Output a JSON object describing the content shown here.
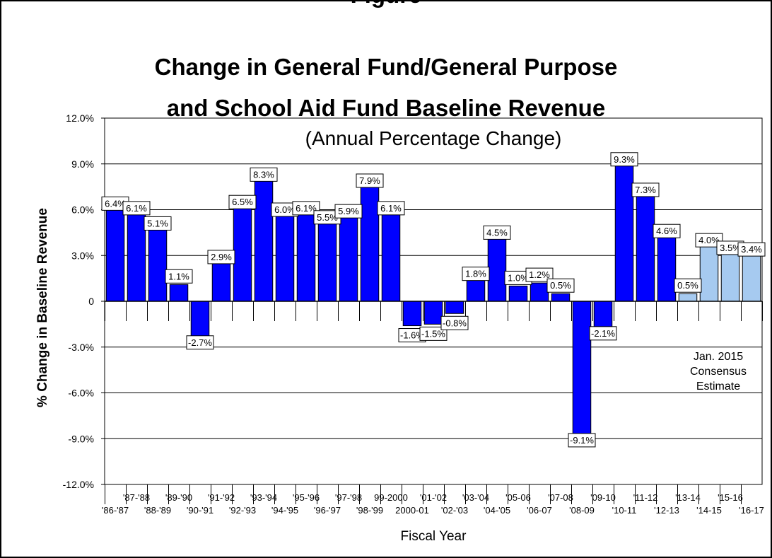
{
  "chart_data": {
    "type": "bar",
    "title_top": "Figure",
    "title": "Change in General Fund/General Purpose",
    "title_line2": "and School Aid Fund Baseline Revenue",
    "subtitle": "(Annual Percentage Change)",
    "xlabel": "Fiscal Year",
    "ylabel": "% Change in Baseline Revenue",
    "ylim": [
      -12.0,
      12.0
    ],
    "yticks": [
      "12.0%",
      "9.0%",
      "6.0%",
      "3.0%",
      "0",
      "-3.0%",
      "-6.0%",
      "-9.0%",
      "-12.0%"
    ],
    "grid": true,
    "categories": [
      "'86-'87",
      "'87-'88",
      "'88-'89",
      "'89-'90",
      "'90-'91",
      "'91-'92",
      "'92-'93",
      "'93-'94",
      "'94-'95",
      "'95-'96",
      "'96-'97",
      "'97-'98",
      "'98-'99",
      "99-2000",
      "2000-01",
      "'01-'02",
      "'02-'03",
      "'03-'04",
      "'04-'05",
      "'05-06",
      "'06-07",
      "'07-08",
      "'08-09",
      "'09-10",
      "'10-11",
      "'11-12",
      "'12-13",
      "'13-14",
      "'14-15",
      "'15-16",
      "'16-17"
    ],
    "values": [
      6.4,
      6.1,
      5.1,
      1.1,
      -2.7,
      2.9,
      6.5,
      8.3,
      6.0,
      6.1,
      5.5,
      5.9,
      7.9,
      6.1,
      -1.6,
      -1.5,
      -0.8,
      1.8,
      4.5,
      1.0,
      1.2,
      0.5,
      -9.1,
      -2.1,
      9.3,
      7.3,
      4.6,
      0.5,
      4.0,
      3.5,
      3.4
    ],
    "data_labels": [
      "6.4%",
      "6.1%",
      "5.1%",
      "1.1%",
      "-2.7%",
      "2.9%",
      "6.5%",
      "8.3%",
      "6.0%",
      "6.1%",
      "5.5%",
      "5.9%",
      "7.9%",
      "6.1%",
      "-1.6%",
      "-1.5%",
      "-0.8%",
      "1.8%",
      "4.5%",
      "1.0%",
      "1.2%",
      "0.5%",
      "-9.1%",
      "-2.1%",
      "9.3%",
      "7.3%",
      "4.6%",
      "0.5%",
      "4.0%",
      "3.5%",
      "3.4%"
    ],
    "estimate_start_index": 27,
    "colors": {
      "actual": "#0000ff",
      "estimate": "#a6caf0",
      "grid": "#000000"
    },
    "annotation": [
      "Jan. 2015",
      "Consensus",
      "Estimate"
    ]
  }
}
